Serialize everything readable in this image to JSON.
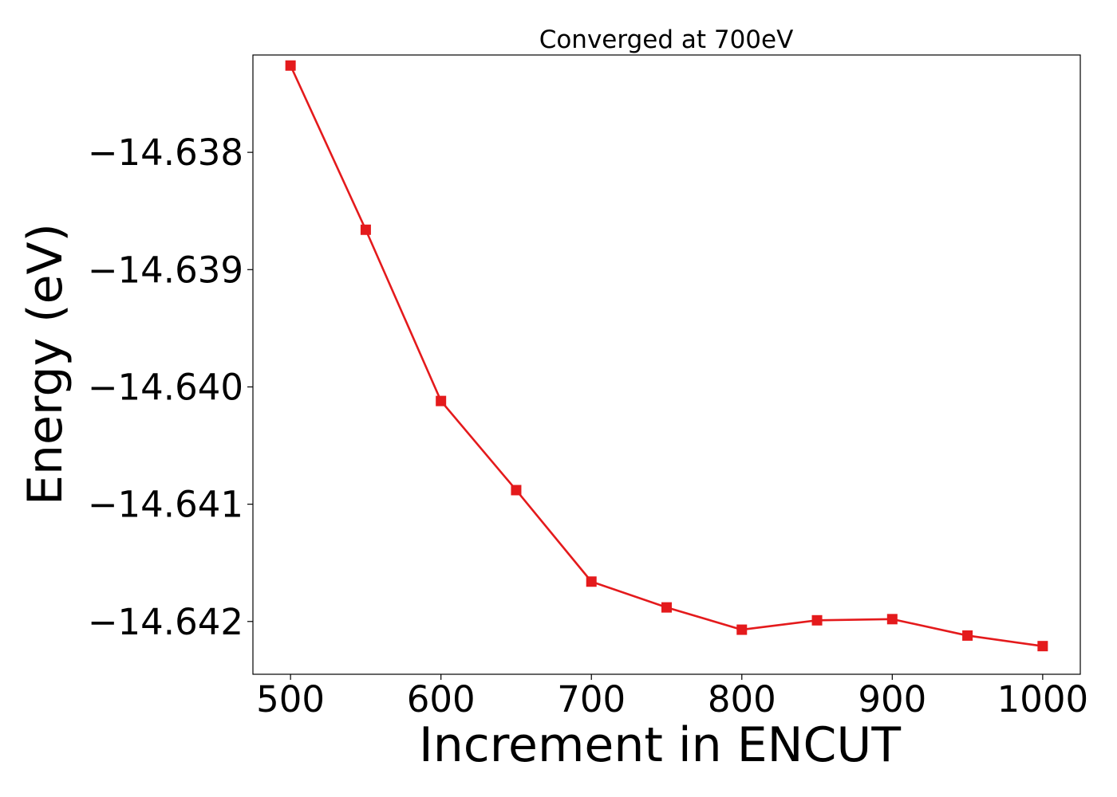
{
  "chart_data": {
    "type": "line",
    "title": "Converged at 700eV",
    "xlabel": "Increment in ENCUT",
    "ylabel": "Energy (eV)",
    "xlim": [
      475,
      1025
    ],
    "ylim": [
      -14.64245,
      -14.63717
    ],
    "xticks": [
      500,
      600,
      700,
      800,
      900,
      1000
    ],
    "xtick_labels": [
      "500",
      "600",
      "700",
      "800",
      "900",
      "1000"
    ],
    "yticks": [
      -14.638,
      -14.639,
      -14.64,
      -14.641,
      -14.642
    ],
    "ytick_labels": [
      "−14.638",
      "−14.639",
      "−14.640",
      "−14.641",
      "−14.642"
    ],
    "grid": false,
    "series": [
      {
        "color": "#e41a1c",
        "marker": "square",
        "x": [
          500,
          550,
          600,
          650,
          700,
          750,
          800,
          850,
          900,
          950,
          1000
        ],
        "y": [
          -14.63726,
          -14.63866,
          -14.64012,
          -14.64088,
          -14.64166,
          -14.64188,
          -14.64207,
          -14.64199,
          -14.64198,
          -14.64212,
          -14.64221
        ]
      }
    ]
  }
}
